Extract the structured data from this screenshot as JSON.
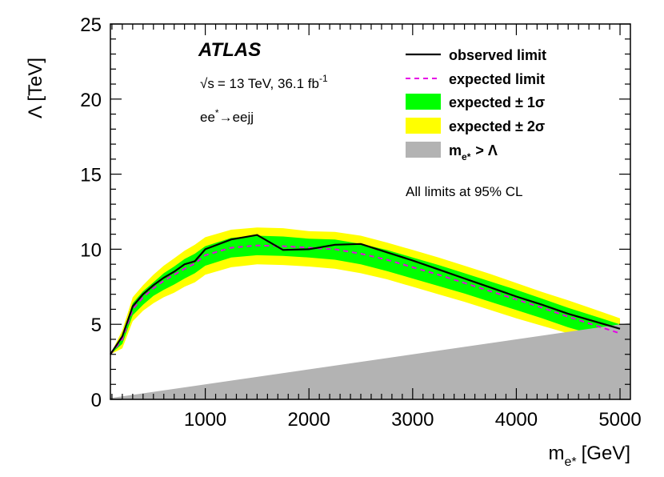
{
  "chart_data": {
    "type": "line",
    "experiment_label": "ATLAS",
    "energy_label": "= 13 TeV, 36.1 fb",
    "sqrt_s_symbol": "√s",
    "lumi_superscript": "-1",
    "process_prefix": "ee",
    "process_star": "*",
    "process_suffix": "→eejj",
    "cl_note": "All limits at 95% CL",
    "xlabel_main": "m",
    "xlabel_sub": "e*",
    "xlabel_unit": "[GeV]",
    "ylabel": "Λ [TeV]",
    "xlim": [
      85,
      5100
    ],
    "ylim": [
      0,
      25
    ],
    "x_ticks": [
      1000,
      2000,
      3000,
      4000,
      5000
    ],
    "x_tick_labels": [
      "1000",
      "2000",
      "3000",
      "4000",
      "5000"
    ],
    "y_ticks": [
      0,
      5,
      10,
      15,
      20,
      25
    ],
    "y_tick_labels": [
      "0",
      "5",
      "10",
      "15",
      "20",
      "25"
    ],
    "legend": {
      "observed": "observed limit",
      "expected": "expected limit",
      "one_sigma": "expected ± 1σ",
      "two_sigma": "expected ± 2σ",
      "excluded_main": "m",
      "excluded_sub": "e*",
      "excluded_tail": "> Λ"
    },
    "colors": {
      "observed": "#000000",
      "expected": "#e600e6",
      "one_sigma": "#00ff00",
      "two_sigma": "#ffff00",
      "excluded": "#b3b3b3"
    },
    "x": [
      85,
      200,
      300,
      400,
      500,
      600,
      700,
      800,
      900,
      1000,
      1250,
      1500,
      1750,
      2000,
      2250,
      2500,
      2750,
      3000,
      3250,
      3500,
      3750,
      4000,
      4250,
      4500,
      4750,
      5000
    ],
    "series": [
      {
        "name": "observed limit",
        "values": [
          3.0,
          4.2,
          6.2,
          7.0,
          7.6,
          8.1,
          8.5,
          9.0,
          9.2,
          10.0,
          10.65,
          10.95,
          9.95,
          10.0,
          10.3,
          10.35,
          9.8,
          9.25,
          8.65,
          8.05,
          7.45,
          6.85,
          6.3,
          5.7,
          5.2,
          4.7
        ]
      },
      {
        "name": "expected limit",
        "values": [
          3.0,
          4.0,
          6.0,
          6.8,
          7.4,
          7.9,
          8.3,
          8.7,
          9.05,
          9.6,
          10.1,
          10.25,
          10.2,
          10.1,
          10.0,
          9.7,
          9.3,
          8.8,
          8.3,
          7.75,
          7.2,
          6.65,
          6.1,
          5.5,
          4.95,
          4.4
        ]
      },
      {
        "name": "expected ± 1σ lower",
        "values": [
          3.0,
          3.7,
          5.6,
          6.3,
          6.9,
          7.3,
          7.65,
          8.05,
          8.4,
          8.9,
          9.45,
          9.6,
          9.55,
          9.45,
          9.3,
          9.0,
          8.55,
          8.05,
          7.55,
          7.05,
          6.5,
          5.95,
          5.4,
          4.8,
          4.3,
          3.8
        ]
      },
      {
        "name": "expected ± 1σ upper",
        "values": [
          3.0,
          4.3,
          6.4,
          7.2,
          7.8,
          8.4,
          8.85,
          9.35,
          9.7,
          10.2,
          10.75,
          10.9,
          10.85,
          10.7,
          10.65,
          10.35,
          9.95,
          9.45,
          8.95,
          8.4,
          7.85,
          7.3,
          6.7,
          6.1,
          5.55,
          5.0
        ]
      },
      {
        "name": "expected ± 2σ lower",
        "values": [
          3.0,
          3.4,
          5.2,
          5.9,
          6.4,
          6.8,
          7.1,
          7.5,
          7.8,
          8.3,
          8.8,
          9.0,
          8.95,
          8.85,
          8.7,
          8.4,
          8.0,
          7.5,
          7.0,
          6.5,
          5.95,
          5.4,
          4.9,
          4.4,
          4.0,
          3.6
        ]
      },
      {
        "name": "expected ± 2σ upper",
        "values": [
          3.0,
          4.6,
          6.8,
          7.6,
          8.3,
          8.9,
          9.4,
          9.9,
          10.3,
          10.8,
          11.3,
          11.45,
          11.4,
          11.2,
          11.15,
          10.9,
          10.45,
          9.95,
          9.45,
          8.9,
          8.35,
          7.75,
          7.15,
          6.6,
          6.0,
          5.4
        ]
      }
    ]
  }
}
